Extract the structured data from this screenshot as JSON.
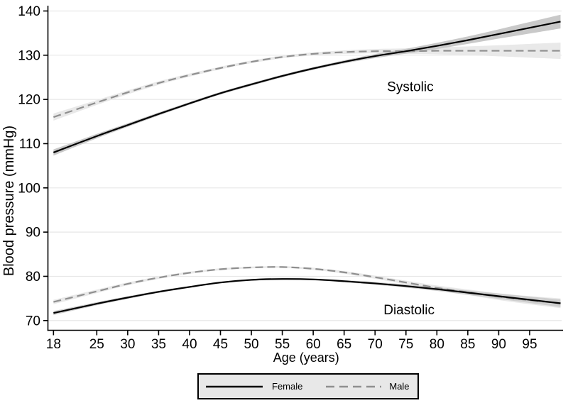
{
  "chart_data": {
    "type": "line",
    "title": "",
    "xlabel": "Age (years)",
    "ylabel": "Blood pressure (mmHg)",
    "x_ticks": [
      18,
      25,
      30,
      35,
      40,
      45,
      50,
      55,
      60,
      65,
      70,
      75,
      80,
      85,
      90,
      95
    ],
    "y_ticks": [
      70,
      80,
      90,
      100,
      110,
      120,
      130,
      140
    ],
    "xlim": [
      17.1,
      100.4
    ],
    "ylim": [
      67.8,
      141.2
    ],
    "grid": "horizontal-only",
    "legend_position": "bottom-center",
    "x": [
      18,
      25,
      30,
      35,
      40,
      45,
      50,
      55,
      60,
      65,
      70,
      75,
      80,
      85,
      90,
      95,
      100
    ],
    "series": [
      {
        "name": "Male systolic",
        "sex": "Male",
        "measure": "Systolic",
        "line_style": "dashed",
        "color": "#8f8f8f",
        "band_color": "#e9e9e9",
        "values": [
          116.0,
          119.3,
          121.6,
          123.7,
          125.5,
          127.1,
          128.5,
          129.6,
          130.3,
          130.7,
          130.9,
          130.9,
          131.0,
          131.0,
          131.0,
          131.0,
          131.0
        ],
        "ci_halfwidth": [
          0.8,
          0.55,
          0.45,
          0.4,
          0.35,
          0.3,
          0.3,
          0.3,
          0.35,
          0.4,
          0.5,
          0.65,
          0.8,
          1.0,
          1.25,
          1.55,
          1.85
        ]
      },
      {
        "name": "Male diastolic",
        "sex": "Male",
        "measure": "Diastolic",
        "line_style": "dashed",
        "color": "#8f8f8f",
        "band_color": "#e9e9e9",
        "values": [
          74.2,
          76.6,
          78.3,
          79.7,
          80.8,
          81.6,
          82.0,
          82.1,
          81.7,
          80.9,
          79.8,
          78.6,
          77.4,
          76.4,
          75.4,
          74.6,
          73.9
        ],
        "ci_halfwidth": [
          0.5,
          0.4,
          0.32,
          0.28,
          0.25,
          0.22,
          0.2,
          0.2,
          0.25,
          0.3,
          0.35,
          0.42,
          0.52,
          0.62,
          0.76,
          0.92,
          1.1
        ]
      },
      {
        "name": "Female systolic",
        "sex": "Female",
        "measure": "Systolic",
        "line_style": "solid",
        "color": "#000000",
        "band_color": "#c9c9c9",
        "values": [
          108.0,
          111.7,
          114.2,
          116.7,
          119.1,
          121.4,
          123.4,
          125.3,
          127.0,
          128.5,
          129.8,
          130.9,
          132.1,
          133.4,
          134.8,
          136.2,
          137.6
        ],
        "ci_halfwidth": [
          0.7,
          0.5,
          0.4,
          0.35,
          0.3,
          0.3,
          0.3,
          0.3,
          0.3,
          0.35,
          0.45,
          0.55,
          0.7,
          0.85,
          1.05,
          1.3,
          1.55
        ]
      },
      {
        "name": "Female diastolic",
        "sex": "Female",
        "measure": "Diastolic",
        "line_style": "solid",
        "color": "#000000",
        "band_color": "#cfcfcf",
        "values": [
          71.7,
          73.8,
          75.2,
          76.5,
          77.6,
          78.6,
          79.2,
          79.4,
          79.3,
          78.9,
          78.4,
          77.8,
          77.1,
          76.3,
          75.5,
          74.7,
          73.9
        ],
        "ci_halfwidth": [
          0.45,
          0.35,
          0.3,
          0.25,
          0.22,
          0.2,
          0.2,
          0.2,
          0.2,
          0.25,
          0.3,
          0.35,
          0.4,
          0.5,
          0.6,
          0.72,
          0.85
        ]
      }
    ],
    "annotations": [
      {
        "text": "Systolic",
        "age": 75.7,
        "bp": 121.9
      },
      {
        "text": "Diastolic",
        "age": 75.5,
        "bp": 71.4
      }
    ],
    "legend": {
      "background": "#e8e8e8",
      "border_color": "#000000",
      "items": [
        {
          "label": "Female",
          "line_style": "solid",
          "color": "#000000"
        },
        {
          "label": "Male",
          "line_style": "dashed",
          "color": "#8f8f8f"
        }
      ]
    }
  },
  "colors": {
    "background": "#ffffff",
    "axis": "#000000",
    "gridline": "#e7e7e7",
    "text": "#000000"
  }
}
